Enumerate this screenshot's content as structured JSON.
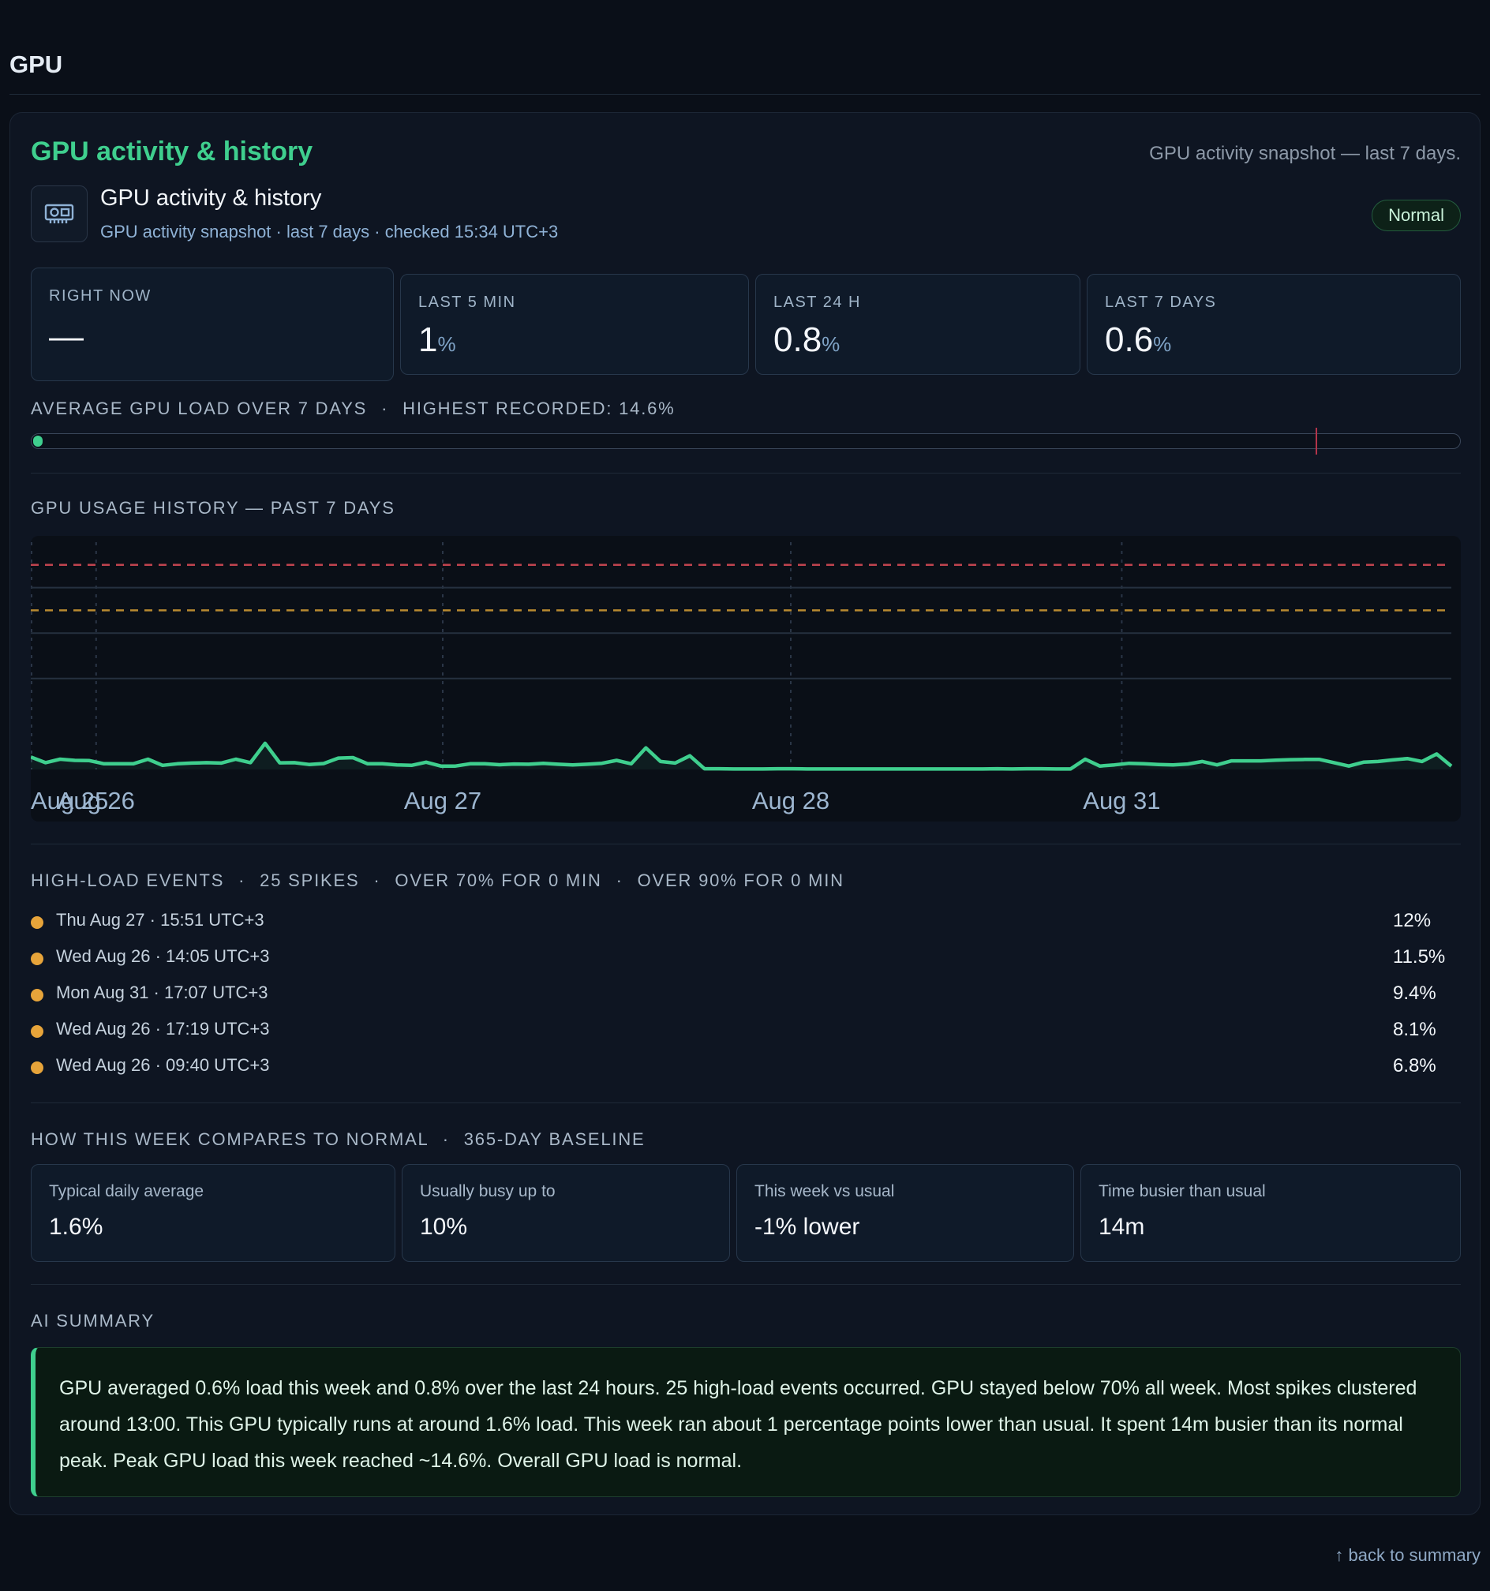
{
  "page": {
    "title": "GPU",
    "back_link": "↑ back to summary"
  },
  "card": {
    "heading": "GPU activity & history",
    "subtitle": "GPU activity snapshot — last 7 days.",
    "sub_title": "GPU activity & history",
    "sub_meta": "GPU activity snapshot · last 7 days · checked 15:34 UTC+3",
    "status_badge": "Normal",
    "icon": "gpu-card-icon"
  },
  "stats": [
    {
      "label": "RIGHT NOW",
      "value": "—",
      "unit": ""
    },
    {
      "label": "LAST 5 MIN",
      "value": "1",
      "unit": "%"
    },
    {
      "label": "LAST 24 H",
      "value": "0.8",
      "unit": "%"
    },
    {
      "label": "LAST 7 DAYS",
      "value": "0.6",
      "unit": "%"
    }
  ],
  "average_bar": {
    "label": "AVERAGE GPU LOAD OVER 7 DAYS",
    "sep": "·",
    "highest_label": "HIGHEST RECORDED: 14.6%",
    "average_percent": 0.6,
    "highest_percent": 90,
    "fill_color": "#3fcf8e",
    "marker_color": "#b3344a"
  },
  "history": {
    "label": "GPU USAGE HISTORY — PAST 7 DAYS"
  },
  "chart_data": {
    "type": "line",
    "title": "",
    "xlabel": "",
    "ylabel": "",
    "ylim": [
      0,
      100
    ],
    "x_tick_labels": [
      {
        "label": "Aug 25",
        "pos": 0.0
      },
      {
        "label": "Aug 26",
        "pos": 0.046
      },
      {
        "label": "Aug 27",
        "pos": 0.29
      },
      {
        "label": "Aug 28",
        "pos": 0.535
      },
      {
        "label": "Aug 31",
        "pos": 0.768
      }
    ],
    "threshold_lines": [
      {
        "value": 90,
        "color": "#c0444f",
        "style": "dashed"
      },
      {
        "value": 70,
        "color": "#b88a30",
        "style": "dashed"
      }
    ],
    "gridlines": [
      80,
      60,
      40
    ],
    "series": [
      {
        "color": "#3fcf8e",
        "values": [
          5.5,
          3,
          4.5,
          4,
          3.9,
          2.5,
          2.5,
          2.5,
          4.5,
          1.8,
          2.5,
          2.8,
          3,
          2.8,
          4.5,
          3,
          11.5,
          2.9,
          3,
          2.2,
          2.6,
          5,
          5.2,
          2.5,
          2.5,
          2,
          1.8,
          3.2,
          1.5,
          1.5,
          2.5,
          2.5,
          2.1,
          2.4,
          2.3,
          2.7,
          2.3,
          2,
          2.3,
          2.7,
          4,
          2.5,
          9.5,
          3.5,
          2.8,
          6,
          0.3,
          0.3,
          0.2,
          0.2,
          0.2,
          0.3,
          0.3,
          0.2,
          0.2,
          0.2,
          0.2,
          0.2,
          0.2,
          0.2,
          0.2,
          0.2,
          0.2,
          0.2,
          0.2,
          0.2,
          0.3,
          0.2,
          0.3,
          0.3,
          0.2,
          0.2,
          4.5,
          1.5,
          2,
          2.7,
          2.5,
          2.2,
          2,
          2.4,
          3.5,
          2,
          3.8,
          3.8,
          3.8,
          4.1,
          4.3,
          4.4,
          4.4,
          3,
          1.5,
          3.2,
          3.5,
          4.2,
          4.8,
          3.5,
          6.8,
          1.5
        ]
      }
    ]
  },
  "events": {
    "label": "HIGH-LOAD EVENTS",
    "sep": "·",
    "spikes": "25 SPIKES",
    "over70": "OVER 70% FOR 0 MIN",
    "over90": "OVER 90% FOR 0 MIN",
    "dot_color": "#e7a43a",
    "items": [
      {
        "time": "Thu Aug 27 · 15:51 UTC+3",
        "value": "12%"
      },
      {
        "time": "Wed Aug 26 · 14:05 UTC+3",
        "value": "11.5%"
      },
      {
        "time": "Mon Aug 31 · 17:07 UTC+3",
        "value": "9.4%"
      },
      {
        "time": "Wed Aug 26 · 17:19 UTC+3",
        "value": "8.1%"
      },
      {
        "time": "Wed Aug 26 · 09:40 UTC+3",
        "value": "6.8%"
      }
    ]
  },
  "compare": {
    "label": "HOW THIS WEEK COMPARES TO NORMAL",
    "sep": "·",
    "baseline": "365-DAY BASELINE",
    "cards": [
      {
        "label": "Typical daily average",
        "value": "1.6%"
      },
      {
        "label": "Usually busy up to",
        "value": "10%"
      },
      {
        "label": "This week vs usual",
        "value": "-1% lower"
      },
      {
        "label": "Time busier than usual",
        "value": "14m"
      }
    ]
  },
  "summary": {
    "label": "AI SUMMARY",
    "text": "GPU averaged 0.6% load this week and 0.8% over the last 24 hours. 25 high-load events occurred. GPU stayed below 70% all week. Most spikes clustered around 13:00. This GPU typically runs at around 1.6% load. This week ran about 1 percentage points lower than usual. It spent 14m busier than its normal peak. Peak GPU load this week reached ~14.6%. Overall GPU load is normal."
  }
}
